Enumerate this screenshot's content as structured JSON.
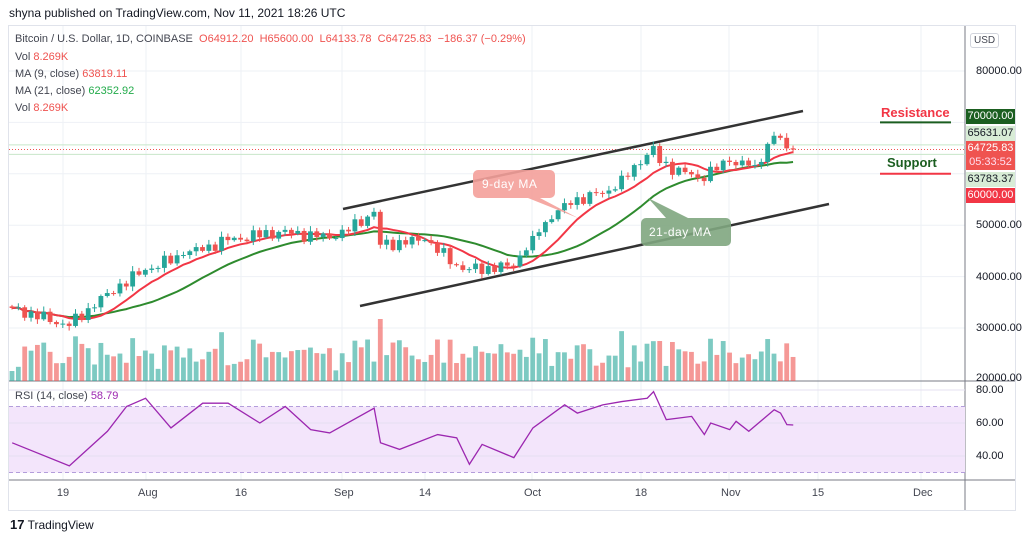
{
  "published": "shyna published on TradingView.com, Nov 11, 2021 18:26 UTC",
  "legend": {
    "symbol": "Bitcoin / U.S. Dollar, 1D, COINBASE",
    "open": "O64912.20",
    "high": "H65600.00",
    "low": "L64133.78",
    "close": "C64725.83",
    "change": "−186.37 (−0.29%)",
    "vol_label": "Vol",
    "vol_value": "8.269K",
    "ma9_label": "MA (9, close)",
    "ma9_value": "63819.11",
    "ma21_label": "MA (21, close)",
    "ma21_value": "62352.92",
    "vol2_label": "Vol",
    "vol2_value": "8.269K",
    "rsi_label": "RSI (14, close)",
    "rsi_value": "58.79"
  },
  "currency_button": "USD",
  "price_axis": [
    "80000.00",
    "50000.00",
    "40000.00",
    "30000.00",
    "20000.00"
  ],
  "price_tags": {
    "resistance": "70000.00",
    "high": "65631.07",
    "last": "64725.83",
    "countdown": "05:33:52",
    "low": "63783.37",
    "support": "60000.00"
  },
  "annotations": {
    "resistance": "Resistance",
    "support": "Support",
    "ma9": "9-day MA",
    "ma21": "21-day MA"
  },
  "rsi_axis": [
    "80.00",
    "60.00",
    "40.00"
  ],
  "time_axis": [
    "19",
    "Aug",
    "16",
    "Sep",
    "14",
    "Oct",
    "18",
    "Nov",
    "15",
    "Dec"
  ],
  "footer": "TradingView",
  "colors": {
    "up": "#26a69a",
    "down": "#ef5350",
    "ma9": "#f23645",
    "ma21": "#2e8b2e",
    "rsi": "#9c27b0",
    "resistance_tag": "#1b5e20",
    "support_tag": "#f23645"
  },
  "chart_data": {
    "type": "candlestick",
    "x_start": "2021-07-11",
    "x_end": "2021-11-11",
    "close_keypoints": [
      [
        "2021-07-11",
        33900
      ],
      [
        "2021-07-20",
        30400
      ],
      [
        "2021-07-26",
        36800
      ],
      [
        "2021-08-01",
        41300
      ],
      [
        "2021-08-07",
        44200
      ],
      [
        "2021-08-14",
        47100
      ],
      [
        "2021-08-22",
        48700
      ],
      [
        "2021-08-31",
        47500
      ],
      [
        "2021-09-06",
        52600
      ],
      [
        "2021-09-07",
        46200
      ],
      [
        "2021-09-14",
        47100
      ],
      [
        "2021-09-20",
        41300
      ],
      [
        "2021-09-28",
        42000
      ],
      [
        "2021-10-01",
        47900
      ],
      [
        "2021-10-06",
        54300
      ],
      [
        "2021-10-14",
        57000
      ],
      [
        "2021-10-20",
        65400
      ],
      [
        "2021-10-21",
        62100
      ],
      [
        "2021-10-27",
        59200
      ],
      [
        "2021-11-01",
        62300
      ],
      [
        "2021-11-05",
        61700
      ],
      [
        "2021-11-08",
        67400
      ],
      [
        "2021-11-09",
        67000
      ],
      [
        "2021-11-10",
        64950
      ],
      [
        "2021-11-11",
        64725.83
      ]
    ],
    "rsi_keypoints": [
      [
        "2021-07-11",
        48
      ],
      [
        "2021-07-20",
        34
      ],
      [
        "2021-07-26",
        55
      ],
      [
        "2021-07-29",
        70
      ],
      [
        "2021-08-01",
        75
      ],
      [
        "2021-08-05",
        57
      ],
      [
        "2021-08-10",
        72
      ],
      [
        "2021-08-14",
        72
      ],
      [
        "2021-08-19",
        60
      ],
      [
        "2021-08-23",
        70
      ],
      [
        "2021-08-27",
        56
      ],
      [
        "2021-08-30",
        54
      ],
      [
        "2021-09-06",
        69
      ],
      [
        "2021-09-07",
        48
      ],
      [
        "2021-09-10",
        44
      ],
      [
        "2021-09-16",
        53
      ],
      [
        "2021-09-19",
        51
      ],
      [
        "2021-09-21",
        35
      ],
      [
        "2021-09-23",
        47
      ],
      [
        "2021-09-28",
        39
      ],
      [
        "2021-10-01",
        57
      ],
      [
        "2021-10-06",
        71
      ],
      [
        "2021-10-08",
        66
      ],
      [
        "2021-10-12",
        71
      ],
      [
        "2021-10-15",
        73
      ],
      [
        "2021-10-19",
        75
      ],
      [
        "2021-10-20",
        79
      ],
      [
        "2021-10-22",
        62
      ],
      [
        "2021-10-26",
        64
      ],
      [
        "2021-10-28",
        53
      ],
      [
        "2021-10-29",
        60
      ],
      [
        "2021-11-01",
        56
      ],
      [
        "2021-11-02",
        61
      ],
      [
        "2021-11-04",
        55
      ],
      [
        "2021-11-08",
        68
      ],
      [
        "2021-11-09",
        66
      ],
      [
        "2021-11-10",
        59
      ],
      [
        "2021-11-11",
        58.79
      ]
    ],
    "ma_periods": [
      9,
      21
    ],
    "levels": {
      "resistance": 70000,
      "support": 60000
    },
    "ylim": [
      20000,
      90000
    ],
    "rsi_bands": [
      30,
      70
    ]
  }
}
